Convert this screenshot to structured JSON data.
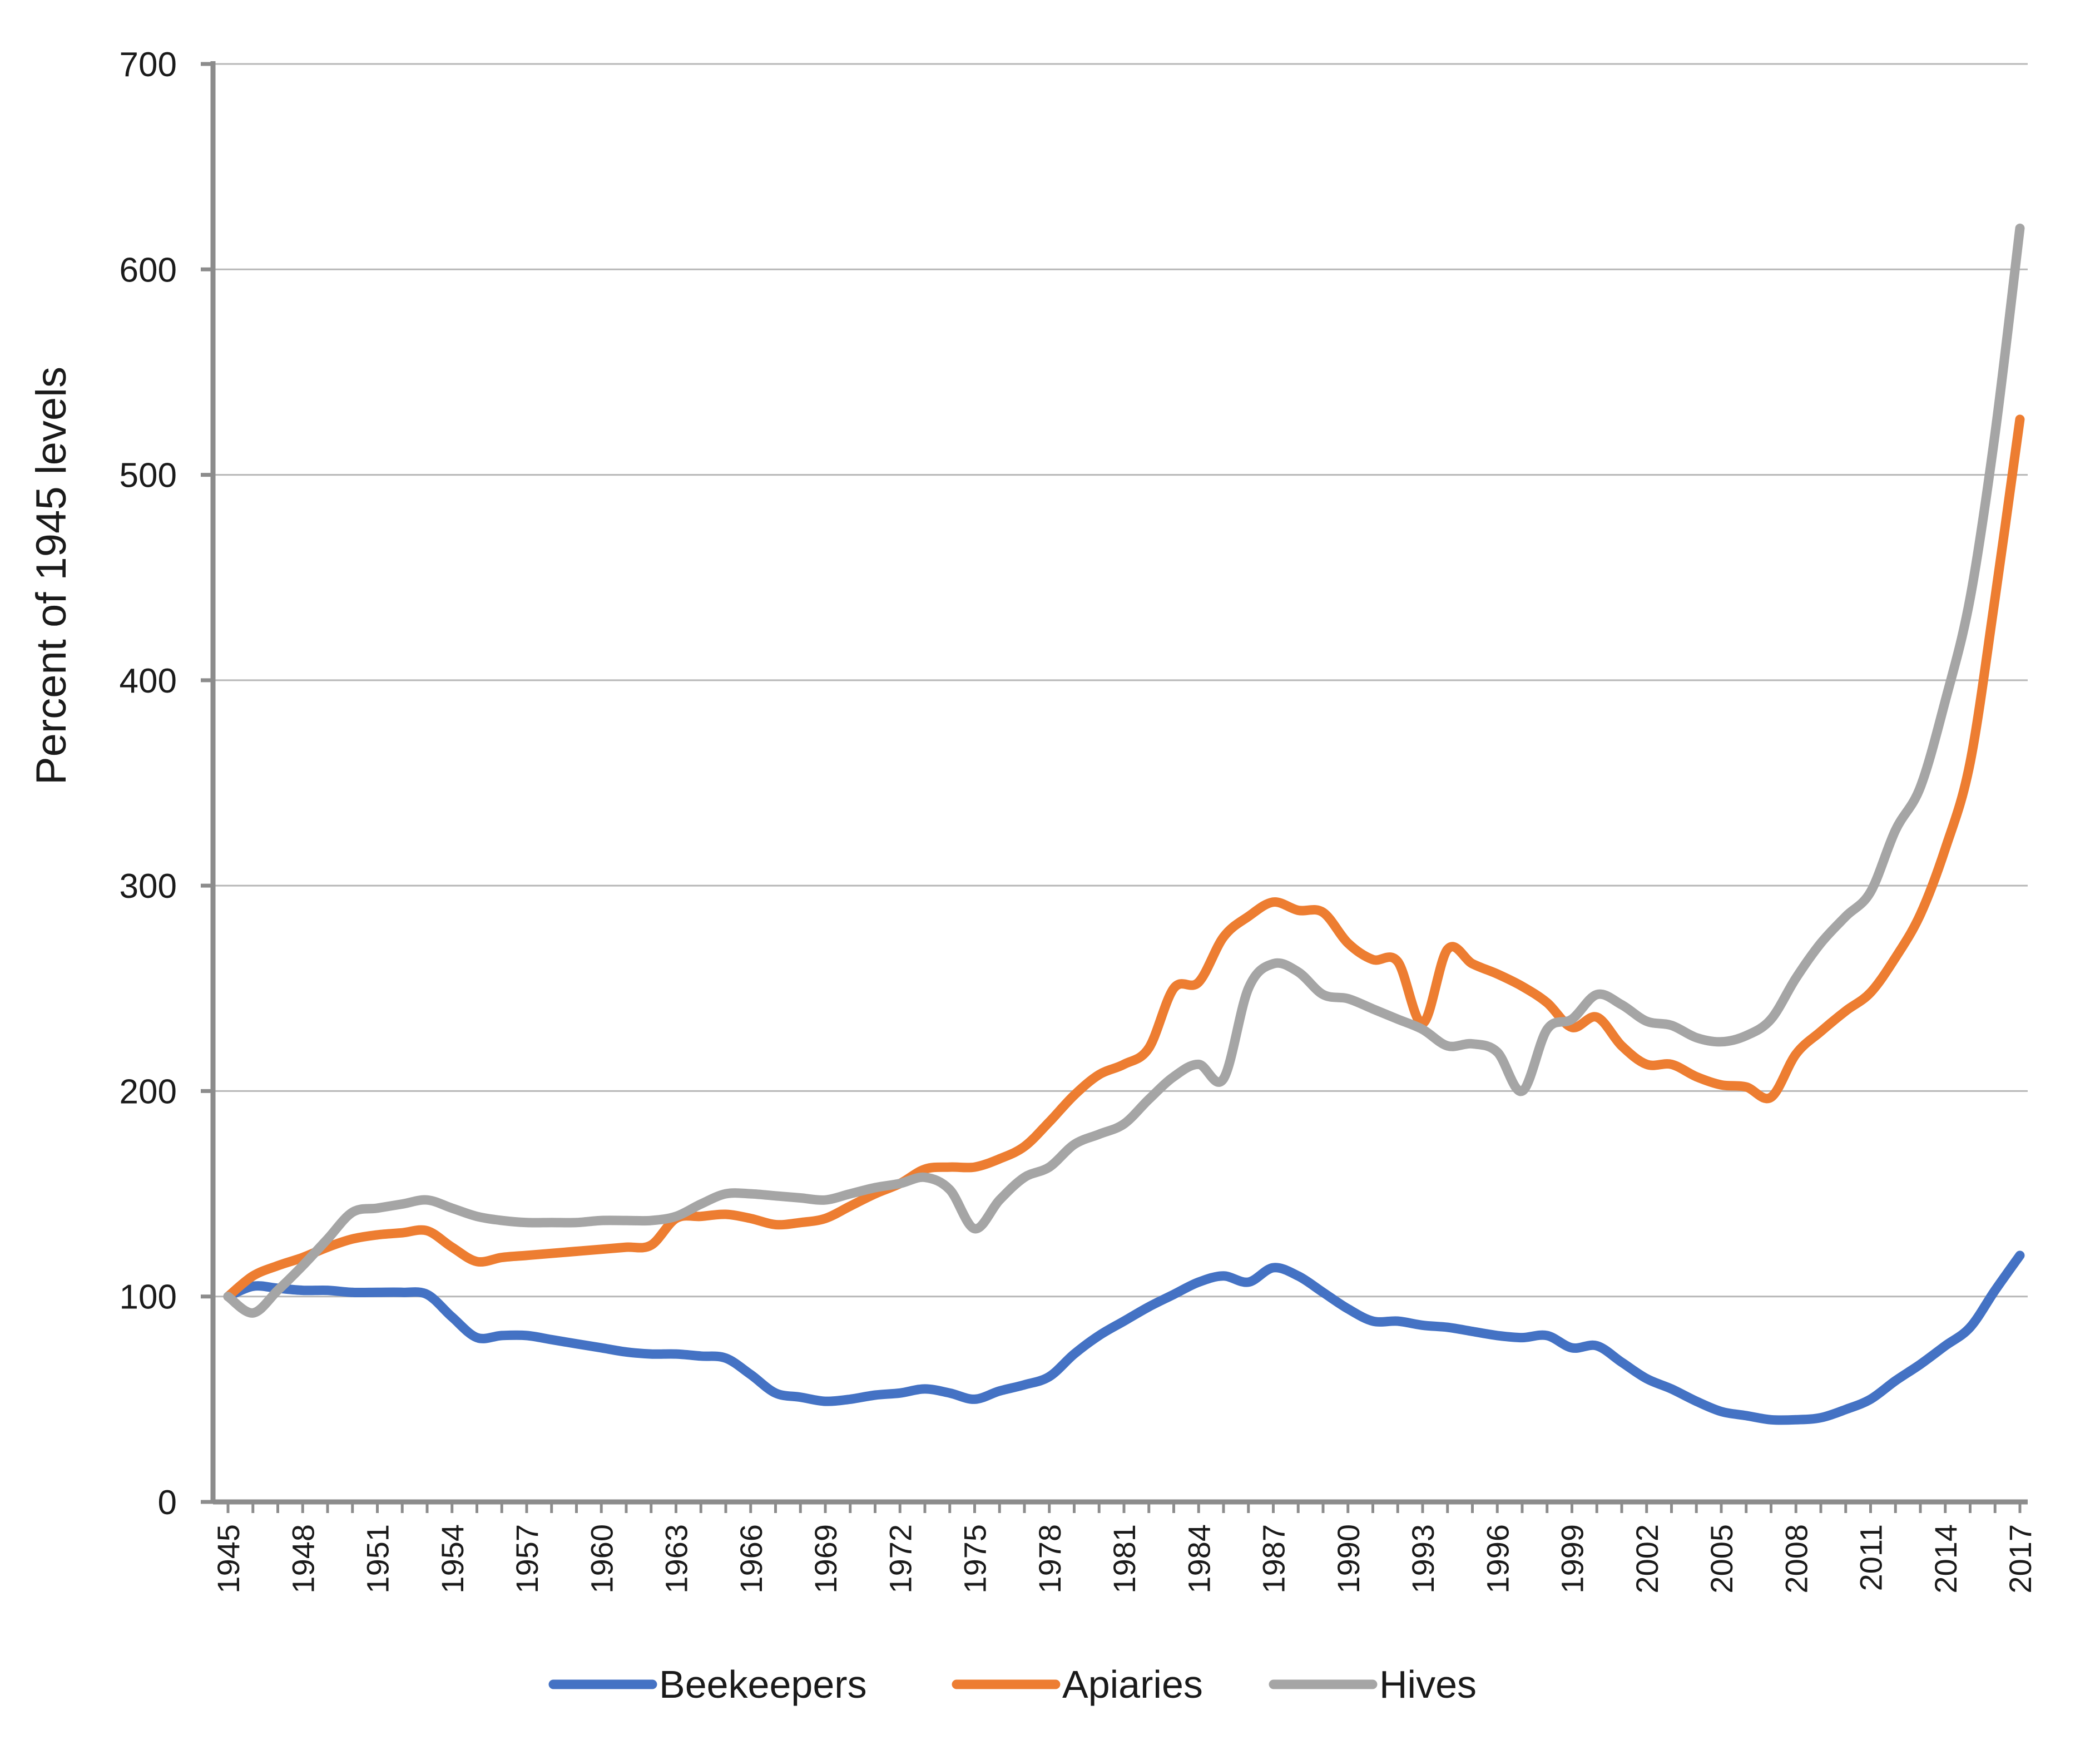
{
  "chart_data": {
    "type": "line",
    "title": "",
    "xlabel": "",
    "ylabel": "Percent of 1945 levels",
    "ylim": [
      0,
      700
    ],
    "yticks": [
      0,
      100,
      200,
      300,
      400,
      500,
      600,
      700
    ],
    "xlim": [
      1945,
      2017
    ],
    "xticks": [
      "1945",
      "1948",
      "1951",
      "1954",
      "1957",
      "1960",
      "1963",
      "1966",
      "1969",
      "1972",
      "1975",
      "1978",
      "1981",
      "1984",
      "1987",
      "1990",
      "1993",
      "1996",
      "1999",
      "2002",
      "2005",
      "2008",
      "2011",
      "2014",
      "2017"
    ],
    "grid": "horizontal",
    "legend_position": "bottom",
    "x": [
      1945,
      1946,
      1947,
      1948,
      1949,
      1950,
      1951,
      1952,
      1953,
      1954,
      1955,
      1956,
      1957,
      1958,
      1959,
      1960,
      1961,
      1962,
      1963,
      1964,
      1965,
      1966,
      1967,
      1968,
      1969,
      1970,
      1971,
      1972,
      1973,
      1974,
      1975,
      1976,
      1977,
      1978,
      1979,
      1980,
      1981,
      1982,
      1983,
      1984,
      1985,
      1986,
      1987,
      1988,
      1989,
      1990,
      1991,
      1992,
      1993,
      1994,
      1995,
      1996,
      1997,
      1998,
      1999,
      2000,
      2001,
      2002,
      2003,
      2004,
      2005,
      2006,
      2007,
      2008,
      2009,
      2010,
      2011,
      2012,
      2013,
      2014,
      2015,
      2016,
      2017
    ],
    "series": [
      {
        "name": "Beekeepers",
        "color": "#4472C4",
        "values": [
          100,
          105,
          104,
          103,
          103,
          102,
          102,
          102,
          101,
          90,
          80,
          81,
          81,
          79,
          77,
          75,
          73,
          72,
          72,
          71,
          70,
          62,
          53,
          51,
          49,
          50,
          52,
          53,
          55,
          53,
          50,
          54,
          57,
          61,
          72,
          81,
          88,
          95,
          101,
          107,
          110,
          107,
          114,
          110,
          102,
          94,
          88,
          88,
          86,
          85,
          83,
          81,
          80,
          81,
          75,
          76,
          68,
          60,
          55,
          49,
          44,
          42,
          40,
          40,
          41,
          45,
          50,
          59,
          67,
          76,
          85,
          103,
          120
        ]
      },
      {
        "name": "Apiaries",
        "color": "#ED7D31",
        "values": [
          100,
          110,
          115,
          119,
          124,
          128,
          130,
          131,
          132,
          124,
          117,
          119,
          120,
          121,
          122,
          123,
          124,
          125,
          138,
          139,
          140,
          138,
          135,
          136,
          138,
          144,
          150,
          155,
          162,
          163,
          163,
          167,
          173,
          185,
          198,
          208,
          213,
          221,
          250,
          253,
          275,
          285,
          292,
          288,
          287,
          272,
          264,
          263,
          233,
          269,
          262,
          257,
          251,
          243,
          231,
          236,
          222,
          213,
          213,
          207,
          203,
          202,
          197,
          218,
          229,
          239,
          248,
          265,
          286,
          318,
          360,
          440,
          527
        ]
      },
      {
        "name": "Hives",
        "color": "#A5A5A5",
        "values": [
          100,
          92,
          103,
          115,
          128,
          141,
          143,
          145,
          147,
          143,
          139,
          137,
          136,
          136,
          136,
          137,
          137,
          137,
          139,
          145,
          150,
          150,
          149,
          148,
          147,
          150,
          153,
          155,
          158,
          152,
          133,
          147,
          158,
          163,
          174,
          179,
          184,
          196,
          207,
          213,
          206,
          250,
          262,
          258,
          247,
          245,
          240,
          235,
          230,
          222,
          223,
          219,
          200,
          230,
          235,
          247,
          242,
          234,
          232,
          226,
          224,
          227,
          235,
          255,
          272,
          285,
          297,
          327,
          348,
          390,
          440,
          520,
          620
        ]
      }
    ]
  }
}
